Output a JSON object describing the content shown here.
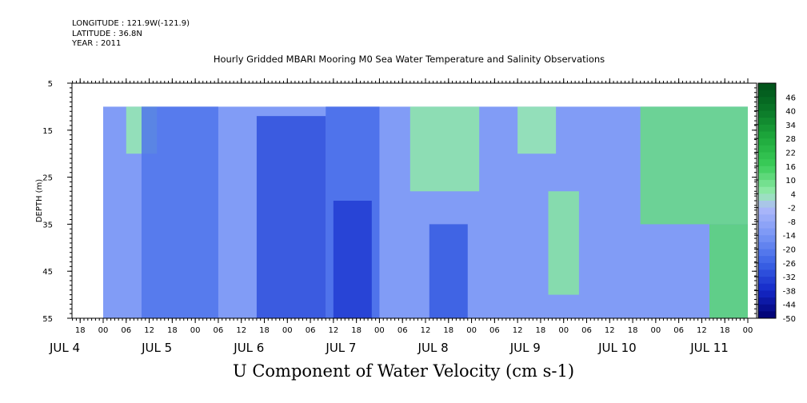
{
  "header": {
    "longitude": "LONGITUDE : 121.9W(-121.9)",
    "latitude": "LATITUDE : 36.8N",
    "year": "YEAR : 2011"
  },
  "chart_data": {
    "type": "heatmap",
    "title": "Hourly Gridded MBARI Mooring M0 Sea Water Temperature and Salinity Observations",
    "footer": "U Component of Water Velocity (cm s-1)",
    "ylabel": "DEPTH (m)",
    "y_reversed": true,
    "ylim": [
      5,
      55
    ],
    "y_ticks": [
      5,
      15,
      25,
      35,
      45,
      55
    ],
    "data_depth_range": [
      10,
      55
    ],
    "x_start_hours": 0,
    "x_end_hours": 168,
    "hour_ticks": [
      "06",
      "12",
      "18",
      "00",
      "06",
      "12",
      "18",
      "00",
      "06",
      "12",
      "18",
      "00",
      "06",
      "12",
      "18",
      "00",
      "06",
      "12",
      "18",
      "00",
      "06",
      "12",
      "18",
      "00",
      "06",
      "12",
      "18",
      "00",
      "06",
      "12",
      "18",
      "00"
    ],
    "day_labels": [
      "JUL  4",
      "JUL  5",
      "JUL  6",
      "JUL  7",
      "JUL  8",
      "JUL  9",
      "JUL 10",
      "JUL 11"
    ],
    "colorbar": {
      "levels": [
        46,
        40,
        34,
        28,
        22,
        16,
        10,
        4,
        -2,
        -8,
        -14,
        -20,
        -26,
        -32,
        -38,
        -44,
        -50
      ],
      "min": -50,
      "max": 52,
      "step": 3
    },
    "velocity_field": [
      {
        "hours": [
          6,
          14
        ],
        "value": 4,
        "depth": [
          10,
          20
        ]
      },
      {
        "hours": [
          10,
          30
        ],
        "value": -22,
        "depth": [
          10,
          55
        ]
      },
      {
        "hours": [
          40,
          58
        ],
        "value": -30,
        "depth": [
          12,
          55
        ]
      },
      {
        "hours": [
          58,
          72
        ],
        "value": -24,
        "depth": [
          10,
          55
        ]
      },
      {
        "hours": [
          60,
          70
        ],
        "value": -34,
        "depth": [
          30,
          55
        ]
      },
      {
        "hours": [
          80,
          98
        ],
        "value": 5,
        "depth": [
          10,
          28
        ]
      },
      {
        "hours": [
          85,
          95
        ],
        "value": -28,
        "depth": [
          35,
          55
        ]
      },
      {
        "hours": [
          108,
          118
        ],
        "value": 4,
        "depth": [
          10,
          20
        ]
      },
      {
        "hours": [
          116,
          124
        ],
        "value": 6,
        "depth": [
          28,
          50
        ]
      },
      {
        "hours": [
          140,
          168
        ],
        "value": 10,
        "depth": [
          10,
          35
        ]
      },
      {
        "hours": [
          158,
          168
        ],
        "value": 12,
        "depth": [
          35,
          55
        ]
      }
    ]
  }
}
